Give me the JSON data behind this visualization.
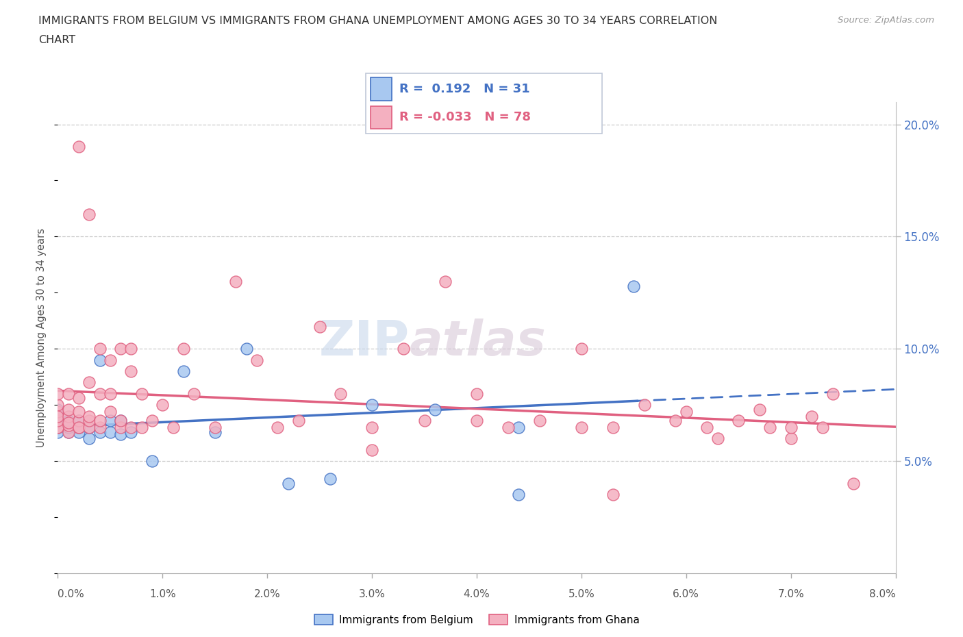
{
  "title_line1": "IMMIGRANTS FROM BELGIUM VS IMMIGRANTS FROM GHANA UNEMPLOYMENT AMONG AGES 30 TO 34 YEARS CORRELATION",
  "title_line2": "CHART",
  "source_text": "Source: ZipAtlas.com",
  "ylabel": "Unemployment Among Ages 30 to 34 years",
  "legend_belgium": "Immigrants from Belgium",
  "legend_ghana": "Immigrants from Ghana",
  "r_belgium": 0.192,
  "n_belgium": 31,
  "r_ghana": -0.033,
  "n_ghana": 78,
  "color_belgium_fill": "#a8c8f0",
  "color_belgium_edge": "#4472c4",
  "color_ghana_fill": "#f4b0c0",
  "color_ghana_edge": "#e06080",
  "color_belgium_line": "#4472c4",
  "color_ghana_line": "#e06080",
  "watermark_zip": "ZIP",
  "watermark_atlas": "atlas",
  "xlim_min": 0.0,
  "xlim_max": 0.08,
  "ylim_min": 0.0,
  "ylim_max": 0.21,
  "ytick_vals": [
    0.05,
    0.1,
    0.15,
    0.2
  ],
  "ytick_labels": [
    "5.0%",
    "10.0%",
    "15.0%",
    "20.0%"
  ],
  "bel_x": [
    0.0,
    0.0,
    0.0,
    0.0,
    0.0,
    0.001,
    0.001,
    0.001,
    0.002,
    0.002,
    0.002,
    0.003,
    0.003,
    0.004,
    0.004,
    0.005,
    0.005,
    0.006,
    0.006,
    0.007,
    0.009,
    0.012,
    0.015,
    0.018,
    0.022,
    0.026,
    0.03,
    0.036,
    0.044,
    0.044,
    0.055
  ],
  "bel_y": [
    0.063,
    0.065,
    0.067,
    0.07,
    0.073,
    0.063,
    0.065,
    0.068,
    0.063,
    0.065,
    0.068,
    0.06,
    0.065,
    0.063,
    0.095,
    0.063,
    0.068,
    0.062,
    0.068,
    0.063,
    0.05,
    0.09,
    0.063,
    0.1,
    0.04,
    0.042,
    0.075,
    0.073,
    0.035,
    0.065,
    0.128
  ],
  "gha_x": [
    0.0,
    0.0,
    0.0,
    0.0,
    0.0,
    0.0,
    0.0,
    0.001,
    0.001,
    0.001,
    0.001,
    0.001,
    0.001,
    0.002,
    0.002,
    0.002,
    0.002,
    0.002,
    0.002,
    0.003,
    0.003,
    0.003,
    0.003,
    0.003,
    0.004,
    0.004,
    0.004,
    0.004,
    0.005,
    0.005,
    0.005,
    0.006,
    0.006,
    0.006,
    0.007,
    0.007,
    0.007,
    0.008,
    0.008,
    0.009,
    0.01,
    0.011,
    0.012,
    0.013,
    0.015,
    0.017,
    0.019,
    0.021,
    0.023,
    0.025,
    0.027,
    0.03,
    0.033,
    0.035,
    0.037,
    0.04,
    0.04,
    0.043,
    0.046,
    0.05,
    0.053,
    0.056,
    0.059,
    0.062,
    0.065,
    0.068,
    0.07,
    0.072,
    0.074,
    0.05,
    0.053,
    0.03,
    0.06,
    0.063,
    0.067,
    0.07,
    0.073,
    0.076
  ],
  "gha_y": [
    0.065,
    0.065,
    0.068,
    0.072,
    0.075,
    0.08,
    0.07,
    0.063,
    0.066,
    0.07,
    0.073,
    0.067,
    0.08,
    0.065,
    0.068,
    0.072,
    0.19,
    0.065,
    0.078,
    0.065,
    0.068,
    0.16,
    0.085,
    0.07,
    0.065,
    0.068,
    0.1,
    0.08,
    0.095,
    0.072,
    0.08,
    0.065,
    0.068,
    0.1,
    0.065,
    0.09,
    0.1,
    0.065,
    0.08,
    0.068,
    0.075,
    0.065,
    0.1,
    0.08,
    0.065,
    0.13,
    0.095,
    0.065,
    0.068,
    0.11,
    0.08,
    0.065,
    0.1,
    0.068,
    0.13,
    0.068,
    0.08,
    0.065,
    0.068,
    0.065,
    0.035,
    0.075,
    0.068,
    0.065,
    0.068,
    0.065,
    0.06,
    0.07,
    0.08,
    0.1,
    0.065,
    0.055,
    0.072,
    0.06,
    0.073,
    0.065,
    0.065,
    0.04
  ]
}
